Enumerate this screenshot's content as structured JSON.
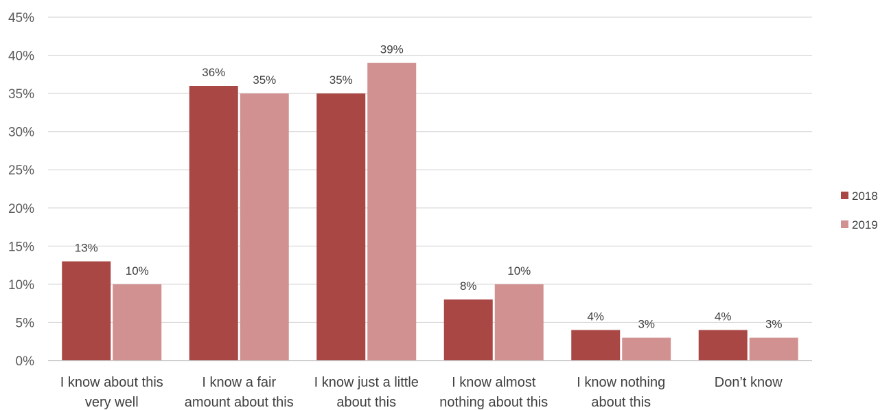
{
  "chart_data": {
    "type": "bar",
    "title": "",
    "xlabel": "",
    "ylabel": "",
    "ylim": [
      0,
      45
    ],
    "y_tick_step": 5,
    "y_tick_format": "percent",
    "grid": true,
    "legend_position": "right",
    "categories": [
      [
        "I know about this",
        "very well"
      ],
      [
        "I know a fair",
        "amount about this"
      ],
      [
        "I know just a little",
        "about this"
      ],
      [
        "I know almost",
        "nothing about this"
      ],
      [
        "I know nothing",
        "about this"
      ],
      [
        "Don’t know"
      ]
    ],
    "series": [
      {
        "name": "2018",
        "color": "#a84744",
        "values": [
          13,
          36,
          35,
          8,
          4,
          4
        ]
      },
      {
        "name": "2019",
        "color": "#d19190",
        "values": [
          10,
          35,
          39,
          10,
          3,
          3
        ]
      }
    ]
  }
}
